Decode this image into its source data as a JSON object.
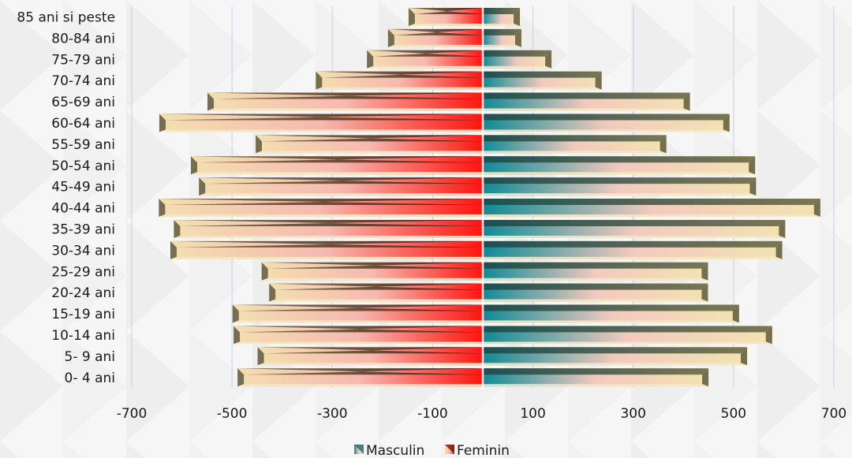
{
  "chart_data": {
    "type": "bar",
    "orientation": "horizontal",
    "style": "population-pyramid",
    "categories": [
      "0- 4 ani",
      "5- 9 ani",
      "10-14 ani",
      "15-19 ani",
      "20-24 ani",
      "25-29 ani",
      "30-34 ani",
      "35-39 ani",
      "40-44 ani",
      "45-49 ani",
      "50-54 ani",
      "55-59 ani",
      "60-64 ani",
      "65-69 ani",
      "70-74 ani",
      "75-79 ani",
      "80-84 ani",
      "85 ani si peste"
    ],
    "series": [
      {
        "name": "Masculin",
        "color": "#1a9aa6",
        "values": [
          450,
          527,
          577,
          511,
          449,
          449,
          597,
          603,
          673,
          545,
          543,
          366,
          492,
          413,
          237,
          137,
          77,
          74
        ]
      },
      {
        "name": "Feminin",
        "color": "#e8201c",
        "values": [
          -489,
          -449,
          -497,
          -499,
          -426,
          -441,
          -623,
          -616,
          -646,
          -566,
          -582,
          -453,
          -645,
          -549,
          -333,
          -231,
          -189,
          -148
        ]
      }
    ],
    "xlim": [
      -700,
      700
    ],
    "xticks": [
      -700,
      -500,
      -300,
      -100,
      100,
      300,
      500,
      700
    ],
    "grid": true,
    "legend": "bottom"
  }
}
